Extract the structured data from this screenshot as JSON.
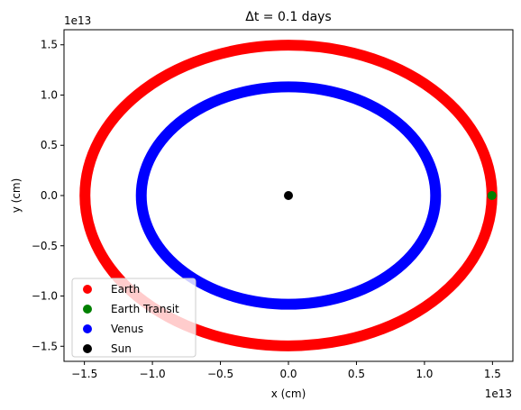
{
  "chart_data": {
    "type": "scatter",
    "title": "Δt = 0.1 days",
    "xlabel": "x (cm)",
    "ylabel": "y (cm)",
    "x_offset_text": "1e13",
    "y_offset_text": "1e13",
    "xlim": [
      -1.65,
      1.65
    ],
    "ylim": [
      -1.65,
      1.65
    ],
    "xticks": [
      {
        "value": -1.5,
        "label": "−1.5"
      },
      {
        "value": -1.0,
        "label": "−1.0"
      },
      {
        "value": -0.5,
        "label": "−0.5"
      },
      {
        "value": 0.0,
        "label": "0.0"
      },
      {
        "value": 0.5,
        "label": "0.5"
      },
      {
        "value": 1.0,
        "label": "1.0"
      },
      {
        "value": 1.5,
        "label": "1.5"
      }
    ],
    "yticks": [
      {
        "value": -1.5,
        "label": "−1.5"
      },
      {
        "value": -1.0,
        "label": "−1.0"
      },
      {
        "value": -0.5,
        "label": "−0.5"
      },
      {
        "value": 0.0,
        "label": "0.0"
      },
      {
        "value": 0.5,
        "label": "0.5"
      },
      {
        "value": 1.0,
        "label": "1.0"
      },
      {
        "value": 1.5,
        "label": "1.5"
      }
    ],
    "grid": false,
    "legend_placement": "lower-left",
    "series": [
      {
        "name": "Earth",
        "color": "#ff0000",
        "kind": "orbit",
        "rx": 1.496,
        "ry": 1.496
      },
      {
        "name": "Earth Transit",
        "color": "#008000",
        "kind": "point",
        "x": 1.496,
        "y": 0.0
      },
      {
        "name": "Venus",
        "color": "#0000ff",
        "kind": "orbit",
        "rx": 1.082,
        "ry": 1.082
      },
      {
        "name": "Sun",
        "color": "#000000",
        "kind": "point",
        "x": 0.0,
        "y": 0.0
      }
    ]
  }
}
